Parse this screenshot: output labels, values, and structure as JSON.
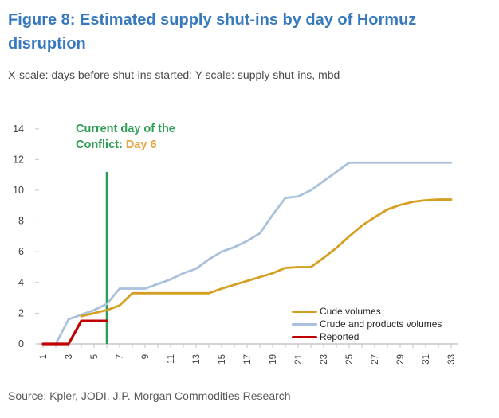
{
  "page": {
    "title": "Figure 8: Estimated supply shut-ins by day of Hormuz disruption",
    "subtitle": "X-scale: days before shut-ins started; Y-scale: supply shut-ins, mbd",
    "source": "Source: Kpler, JODI, J.P. Morgan Commodities Research"
  },
  "annotation": {
    "line1": "Current day of the",
    "line2_prefix": "Conflict: ",
    "line2_highlight": "Day 6"
  },
  "colors": {
    "title_blue": "#3879BE",
    "axis_text": "#404040",
    "axis_line": "#C6C6C6",
    "crude_gold": "#D5A021",
    "crude_products_blue": "#A9C1DC",
    "reported_red": "#C00000",
    "conflict_green": "#2E9E54",
    "day_highlight_orange": "#E8A33D"
  },
  "chart_data": {
    "type": "line",
    "title": "Figure 8: Estimated supply shut-ins by day of Hormuz disruption",
    "xlabel": "days before shut-ins started",
    "ylabel": "supply shut-ins, mbd",
    "xlim": [
      1,
      33
    ],
    "ylim": [
      0,
      14
    ],
    "x_ticks": [
      1,
      3,
      5,
      7,
      9,
      11,
      13,
      15,
      17,
      19,
      21,
      23,
      25,
      27,
      29,
      31,
      33
    ],
    "y_ticks": [
      0,
      2,
      4,
      6,
      8,
      10,
      12,
      14
    ],
    "grid": false,
    "legend_position": "inside-lower-right",
    "series": [
      {
        "name": "Cude volumes",
        "color": "#D5A021",
        "points": [
          [
            4,
            1.8
          ],
          [
            5,
            2.0
          ],
          [
            6,
            2.2
          ],
          [
            7,
            2.5
          ],
          [
            8,
            3.3
          ],
          [
            9,
            3.3
          ],
          [
            10,
            3.3
          ],
          [
            11,
            3.3
          ],
          [
            12,
            3.3
          ],
          [
            13,
            3.3
          ],
          [
            14,
            3.3
          ],
          [
            15,
            3.6
          ],
          [
            16,
            3.85
          ],
          [
            17,
            4.1
          ],
          [
            18,
            4.35
          ],
          [
            19,
            4.6
          ],
          [
            20,
            4.95
          ],
          [
            21,
            5.0
          ],
          [
            22,
            5.0
          ],
          [
            23,
            5.6
          ],
          [
            24,
            6.25
          ],
          [
            25,
            7.0
          ],
          [
            26,
            7.7
          ],
          [
            27,
            8.25
          ],
          [
            28,
            8.75
          ],
          [
            29,
            9.05
          ],
          [
            30,
            9.25
          ],
          [
            31,
            9.35
          ],
          [
            32,
            9.4
          ],
          [
            33,
            9.4
          ]
        ]
      },
      {
        "name": "Crude and products volumes",
        "color": "#A9C1DC",
        "points": [
          [
            2,
            0
          ],
          [
            3,
            1.6
          ],
          [
            4,
            1.9
          ],
          [
            5,
            2.2
          ],
          [
            6,
            2.6
          ],
          [
            7,
            3.6
          ],
          [
            8,
            3.6
          ],
          [
            9,
            3.6
          ],
          [
            10,
            3.9
          ],
          [
            11,
            4.2
          ],
          [
            12,
            4.6
          ],
          [
            13,
            4.9
          ],
          [
            14,
            5.5
          ],
          [
            15,
            6.0
          ],
          [
            16,
            6.3
          ],
          [
            17,
            6.7
          ],
          [
            18,
            7.2
          ],
          [
            19,
            8.4
          ],
          [
            20,
            9.5
          ],
          [
            21,
            9.6
          ],
          [
            22,
            10.0
          ],
          [
            23,
            10.6
          ],
          [
            24,
            11.2
          ],
          [
            25,
            11.8
          ],
          [
            26,
            11.8
          ],
          [
            27,
            11.8
          ],
          [
            28,
            11.8
          ],
          [
            29,
            11.8
          ],
          [
            30,
            11.8
          ],
          [
            31,
            11.8
          ],
          [
            32,
            11.8
          ],
          [
            33,
            11.8
          ]
        ]
      },
      {
        "name": "Reported",
        "color": "#C00000",
        "points": [
          [
            1,
            0
          ],
          [
            2,
            0
          ],
          [
            3,
            0
          ],
          [
            4,
            1.5
          ],
          [
            5,
            1.5
          ],
          [
            6,
            1.5
          ]
        ]
      }
    ],
    "reference_line": {
      "x": 6,
      "y_top": 11.2,
      "color": "#2E9E54",
      "label": "Current day of the Conflict: Day 6"
    }
  }
}
